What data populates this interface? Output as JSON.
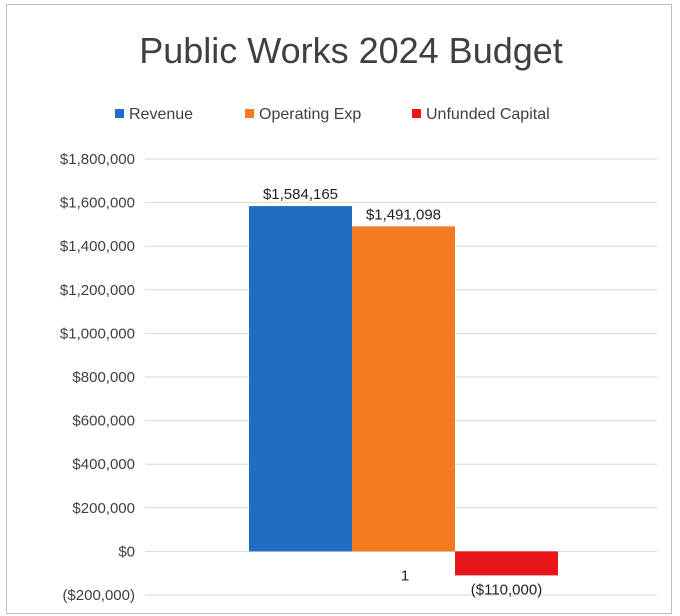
{
  "chart_data": {
    "type": "bar",
    "title": "Public Works 2024 Budget",
    "categories": [
      "1"
    ],
    "series": [
      {
        "name": "Revenue",
        "values": [
          1584165
        ],
        "label": "$1,584,165",
        "color": "#1f6dc5"
      },
      {
        "name": "Operating Exp",
        "values": [
          1491098
        ],
        "label": "$1,491,098",
        "color": "#f47b20"
      },
      {
        "name": "Unfunded Capital",
        "values": [
          -110000
        ],
        "label": "($110,000)",
        "color": "#e8151b"
      }
    ],
    "ylim": [
      -200000,
      1800000
    ],
    "yticks": [
      {
        "value": 1800000,
        "label": "$1,800,000"
      },
      {
        "value": 1600000,
        "label": "$1,600,000"
      },
      {
        "value": 1400000,
        "label": "$1,400,000"
      },
      {
        "value": 1200000,
        "label": "$1,200,000"
      },
      {
        "value": 1000000,
        "label": "$1,000,000"
      },
      {
        "value": 800000,
        "label": "$800,000"
      },
      {
        "value": 600000,
        "label": "$600,000"
      },
      {
        "value": 400000,
        "label": "$400,000"
      },
      {
        "value": 200000,
        "label": "$200,000"
      },
      {
        "value": 0,
        "label": "$0"
      },
      {
        "value": -200000,
        "label": "($200,000)"
      }
    ],
    "xlabel": "",
    "ylabel": "",
    "grid": true,
    "legend_position": "top"
  }
}
